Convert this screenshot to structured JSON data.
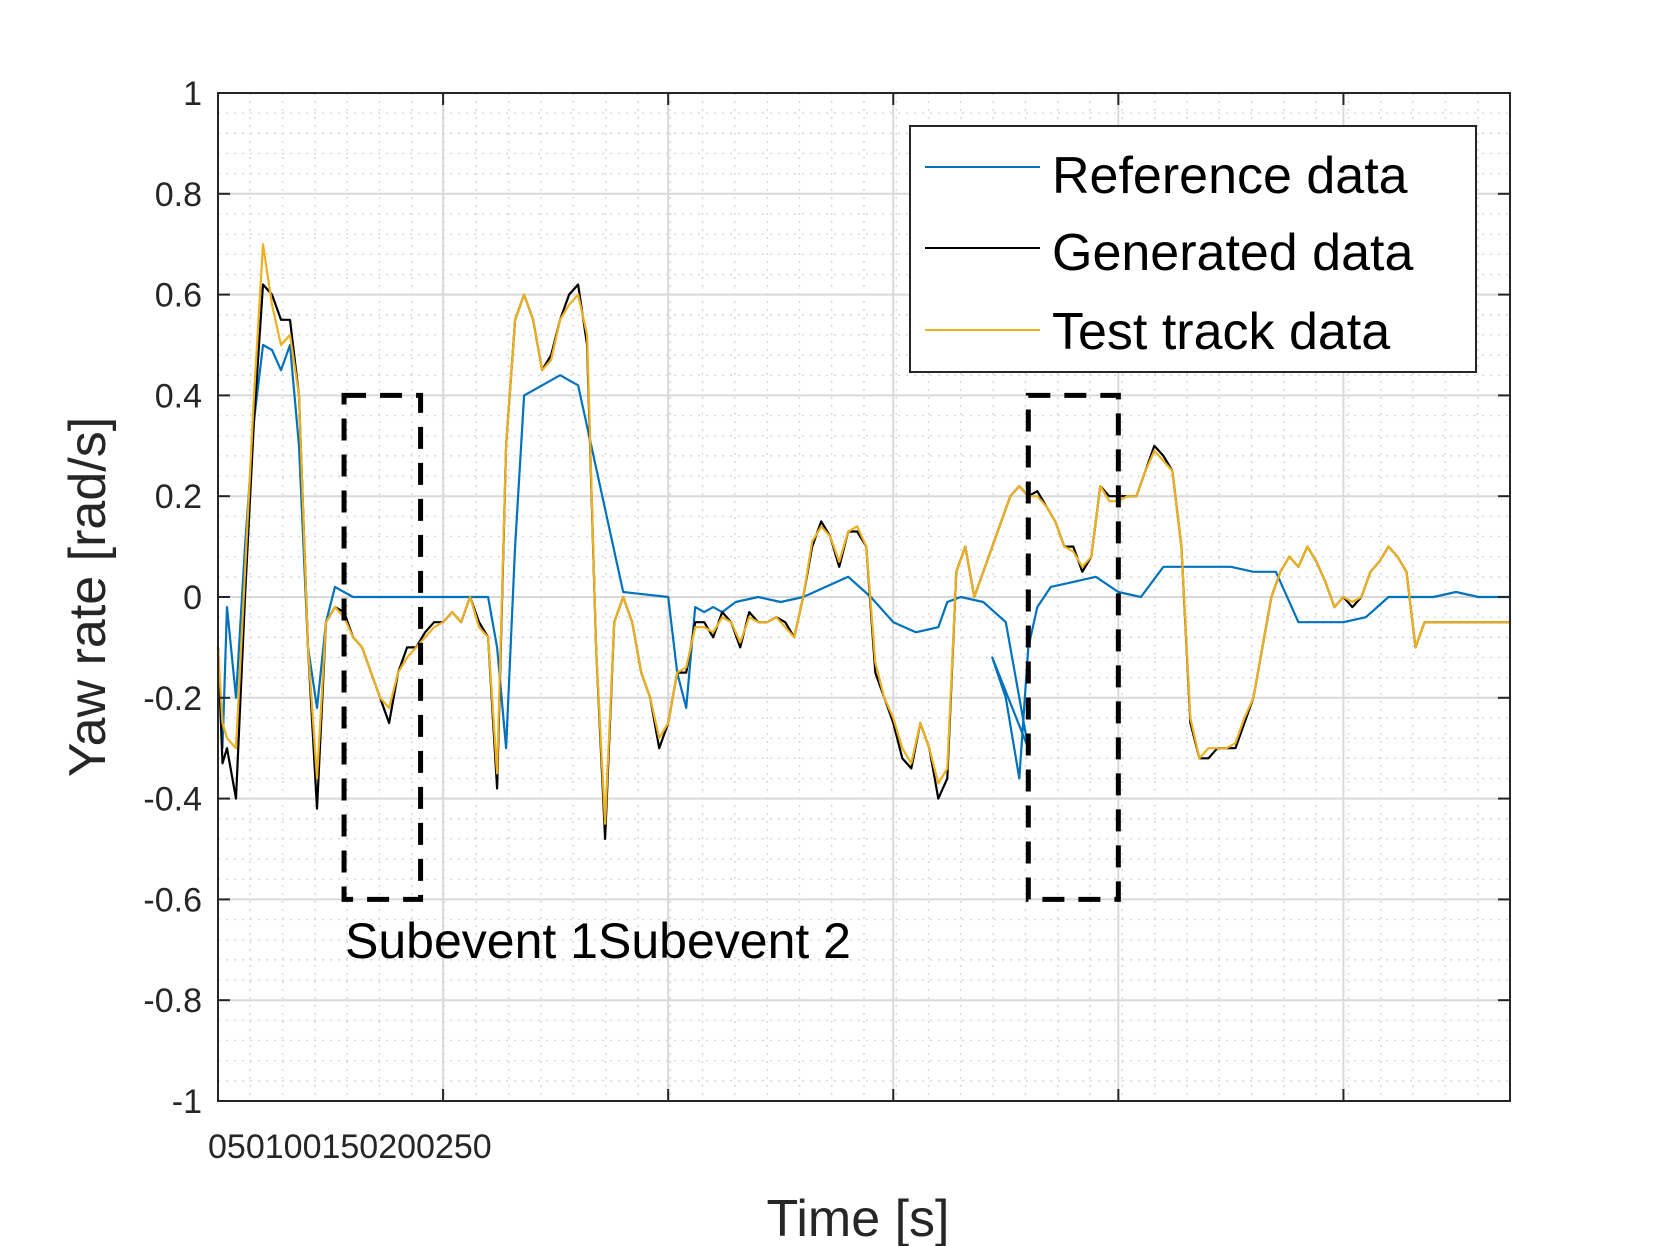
{
  "chart_data": {
    "type": "line",
    "title": "",
    "xlabel": "Time [s]",
    "ylabel": "Yaw rate [rad/s]",
    "xlim": [
      0,
      287
    ],
    "ylim": [
      -1,
      1
    ],
    "x_tick_labels": [
      "0",
      "50",
      "100",
      "150",
      "200",
      "250"
    ],
    "y_ticks": [
      1,
      0.8,
      0.6,
      0.4,
      0.2,
      0,
      -0.2,
      -0.4,
      -0.6,
      -0.8,
      -1
    ],
    "y_tick_labels": [
      "1",
      "0.8",
      "0.6",
      "0.4",
      "0.2",
      "0",
      "-0.2",
      "-0.4",
      "-0.6",
      "-0.8",
      "-1"
    ],
    "grid": true,
    "minor_grid": true,
    "legend_position": "top-right",
    "colors": {
      "reference": "#0072BD",
      "generated": "#000000",
      "test_track": "#EDB120",
      "grid": "#d9d9d9",
      "annotation": "#000000"
    },
    "series": [
      {
        "key": "reference",
        "name": "Reference data",
        "x": [
          0,
          1,
          2,
          4,
          6,
          8,
          10,
          12,
          14,
          16,
          18,
          20,
          22,
          24,
          26,
          28,
          30,
          32,
          34,
          36,
          40,
          50,
          60,
          62,
          64,
          66,
          68,
          70,
          72,
          74,
          76,
          78,
          80,
          90,
          100,
          102,
          104,
          106,
          108,
          110,
          112,
          115,
          120,
          125,
          130,
          135,
          140,
          145,
          150,
          155,
          160,
          162,
          165,
          170,
          175,
          180,
          172,
          175,
          178,
          180,
          182,
          185,
          190,
          195,
          200,
          205,
          210,
          215,
          220,
          225,
          230,
          235,
          240,
          245,
          250,
          255,
          260,
          265,
          270,
          275,
          280,
          285,
          287
        ],
        "y": [
          -0.1,
          -0.3,
          -0.02,
          -0.2,
          0.1,
          0.35,
          0.5,
          0.49,
          0.45,
          0.5,
          0.3,
          -0.1,
          -0.22,
          -0.05,
          0.02,
          0.01,
          0.0,
          0.0,
          0.0,
          0.0,
          0.0,
          0.0,
          0.0,
          -0.1,
          -0.3,
          0.1,
          0.4,
          0.41,
          0.42,
          0.43,
          0.44,
          0.43,
          0.42,
          0.01,
          0.0,
          -0.15,
          -0.22,
          -0.02,
          -0.03,
          -0.02,
          -0.03,
          -0.01,
          0.0,
          -0.01,
          0.0,
          0.02,
          0.04,
          0.0,
          -0.05,
          -0.07,
          -0.06,
          -0.01,
          0.0,
          -0.01,
          -0.05,
          -0.3,
          -0.12,
          -0.2,
          -0.36,
          -0.1,
          -0.02,
          0.02,
          0.03,
          0.04,
          0.01,
          0.0,
          0.06,
          0.06,
          0.06,
          0.06,
          0.05,
          0.05,
          -0.05,
          -0.05,
          -0.05,
          -0.04,
          0.0,
          0.0,
          0.0,
          0.01,
          0.0,
          0.0,
          0.0
        ]
      },
      {
        "key": "generated",
        "name": "Generated data",
        "x": [
          0,
          1,
          2,
          4,
          6,
          8,
          10,
          12,
          14,
          16,
          18,
          20,
          22,
          24,
          26,
          28,
          30,
          32,
          34,
          36,
          38,
          40,
          42,
          44,
          46,
          48,
          50,
          52,
          54,
          56,
          58,
          60,
          62,
          64,
          66,
          68,
          70,
          72,
          74,
          76,
          78,
          80,
          82,
          84,
          86,
          88,
          90,
          92,
          94,
          96,
          98,
          100,
          102,
          104,
          106,
          108,
          110,
          112,
          114,
          116,
          118,
          120,
          122,
          124,
          126,
          128,
          130,
          132,
          134,
          136,
          138,
          140,
          142,
          144,
          146,
          148,
          150,
          152,
          154,
          156,
          158,
          160,
          162,
          164,
          166,
          168,
          170,
          172,
          174,
          176,
          178,
          180,
          182,
          184,
          186,
          188,
          190,
          192,
          194,
          196,
          198,
          200,
          202,
          204,
          206,
          208,
          210,
          212,
          214,
          216,
          218,
          220,
          222,
          224,
          226,
          228,
          230,
          232,
          234,
          236,
          238,
          240,
          242,
          244,
          246,
          248,
          250,
          252,
          254,
          256,
          258,
          260,
          262,
          264,
          266,
          268,
          270,
          272,
          274,
          276,
          278,
          280,
          282,
          284,
          286,
          287
        ],
        "y": [
          -0.1,
          -0.33,
          -0.3,
          -0.4,
          0.0,
          0.35,
          0.62,
          0.6,
          0.55,
          0.55,
          0.4,
          -0.1,
          -0.42,
          -0.05,
          -0.02,
          -0.03,
          -0.08,
          -0.1,
          -0.15,
          -0.2,
          -0.25,
          -0.15,
          -0.1,
          -0.1,
          -0.07,
          -0.05,
          -0.05,
          -0.03,
          -0.05,
          0.0,
          -0.05,
          -0.08,
          -0.38,
          0.3,
          0.55,
          0.6,
          0.55,
          0.45,
          0.48,
          0.55,
          0.6,
          0.62,
          0.5,
          -0.1,
          -0.48,
          -0.05,
          0.0,
          -0.05,
          -0.15,
          -0.2,
          -0.3,
          -0.25,
          -0.15,
          -0.15,
          -0.05,
          -0.05,
          -0.08,
          -0.03,
          -0.05,
          -0.1,
          -0.03,
          -0.05,
          -0.05,
          -0.04,
          -0.05,
          -0.08,
          0.0,
          0.1,
          0.15,
          0.12,
          0.06,
          0.13,
          0.13,
          0.1,
          -0.15,
          -0.2,
          -0.25,
          -0.32,
          -0.34,
          -0.25,
          -0.3,
          -0.4,
          -0.36,
          0.05,
          0.1,
          0.0,
          0.05,
          0.1,
          0.15,
          0.2,
          0.22,
          0.2,
          0.21,
          0.18,
          0.15,
          0.1,
          0.1,
          0.05,
          0.08,
          0.22,
          0.2,
          0.2,
          0.2,
          0.2,
          0.25,
          0.3,
          0.28,
          0.25,
          0.1,
          -0.25,
          -0.32,
          -0.32,
          -0.3,
          -0.3,
          -0.3,
          -0.25,
          -0.2,
          -0.1,
          0.0,
          0.05,
          0.08,
          0.06,
          0.1,
          0.07,
          0.03,
          -0.02,
          0.0,
          -0.02,
          0.0,
          0.05,
          0.07,
          0.1,
          0.08,
          0.05,
          -0.1,
          -0.05,
          -0.05,
          -0.05,
          -0.05,
          -0.05,
          -0.05,
          -0.05,
          -0.05,
          -0.05,
          -0.05,
          -0.05
        ]
      },
      {
        "key": "test_track",
        "name": "Test track data",
        "x": [
          0,
          1,
          2,
          4,
          6,
          8,
          10,
          12,
          14,
          16,
          18,
          20,
          22,
          24,
          26,
          28,
          30,
          32,
          34,
          36,
          38,
          40,
          42,
          44,
          46,
          48,
          50,
          52,
          54,
          56,
          58,
          60,
          62,
          64,
          66,
          68,
          70,
          72,
          74,
          76,
          78,
          80,
          82,
          84,
          86,
          88,
          90,
          92,
          94,
          96,
          98,
          100,
          102,
          104,
          106,
          108,
          110,
          112,
          114,
          116,
          118,
          120,
          122,
          124,
          126,
          128,
          130,
          132,
          134,
          136,
          138,
          140,
          142,
          144,
          146,
          148,
          150,
          152,
          154,
          156,
          158,
          160,
          162,
          164,
          166,
          168,
          170,
          172,
          174,
          176,
          178,
          180,
          182,
          184,
          186,
          188,
          190,
          192,
          194,
          196,
          198,
          200,
          202,
          204,
          206,
          208,
          210,
          212,
          214,
          216,
          218,
          220,
          222,
          224,
          226,
          228,
          230,
          232,
          234,
          236,
          238,
          240,
          242,
          244,
          246,
          248,
          250,
          252,
          254,
          256,
          258,
          260,
          262,
          264,
          266,
          268,
          270,
          272,
          274,
          276,
          278,
          280,
          282,
          284,
          286,
          287
        ],
        "y": [
          -0.1,
          -0.25,
          -0.28,
          -0.3,
          0.05,
          0.4,
          0.7,
          0.58,
          0.5,
          0.52,
          0.4,
          -0.1,
          -0.36,
          -0.05,
          -0.02,
          -0.04,
          -0.08,
          -0.1,
          -0.15,
          -0.2,
          -0.22,
          -0.15,
          -0.12,
          -0.1,
          -0.08,
          -0.06,
          -0.05,
          -0.03,
          -0.05,
          0.0,
          -0.06,
          -0.08,
          -0.35,
          0.3,
          0.55,
          0.6,
          0.55,
          0.45,
          0.47,
          0.55,
          0.58,
          0.6,
          0.52,
          -0.1,
          -0.45,
          -0.05,
          0.0,
          -0.05,
          -0.15,
          -0.2,
          -0.28,
          -0.25,
          -0.15,
          -0.14,
          -0.06,
          -0.06,
          -0.07,
          -0.04,
          -0.05,
          -0.09,
          -0.04,
          -0.05,
          -0.05,
          -0.04,
          -0.06,
          -0.08,
          0.0,
          0.11,
          0.14,
          0.12,
          0.07,
          0.13,
          0.14,
          0.1,
          -0.13,
          -0.2,
          -0.24,
          -0.3,
          -0.33,
          -0.25,
          -0.3,
          -0.37,
          -0.34,
          0.05,
          0.1,
          0.0,
          0.05,
          0.1,
          0.15,
          0.2,
          0.22,
          0.2,
          0.2,
          0.18,
          0.15,
          0.1,
          0.09,
          0.06,
          0.08,
          0.22,
          0.19,
          0.19,
          0.2,
          0.2,
          0.25,
          0.29,
          0.27,
          0.25,
          0.1,
          -0.24,
          -0.32,
          -0.3,
          -0.3,
          -0.3,
          -0.29,
          -0.24,
          -0.2,
          -0.1,
          0.0,
          0.05,
          0.08,
          0.06,
          0.1,
          0.07,
          0.03,
          -0.02,
          0.0,
          -0.01,
          0.0,
          0.05,
          0.07,
          0.1,
          0.08,
          0.05,
          -0.1,
          -0.05,
          -0.05,
          -0.05,
          -0.05,
          -0.05,
          -0.05,
          -0.05,
          -0.05,
          -0.05,
          -0.05,
          -0.05
        ]
      }
    ],
    "annotations": [
      {
        "label": "Subevent 1",
        "x_range": [
          28,
          45
        ],
        "y_range": [
          -0.6,
          0.4
        ]
      },
      {
        "label": "Subevent 2",
        "x_range": [
          180,
          200
        ],
        "y_range": [
          -0.6,
          0.4
        ]
      }
    ]
  }
}
